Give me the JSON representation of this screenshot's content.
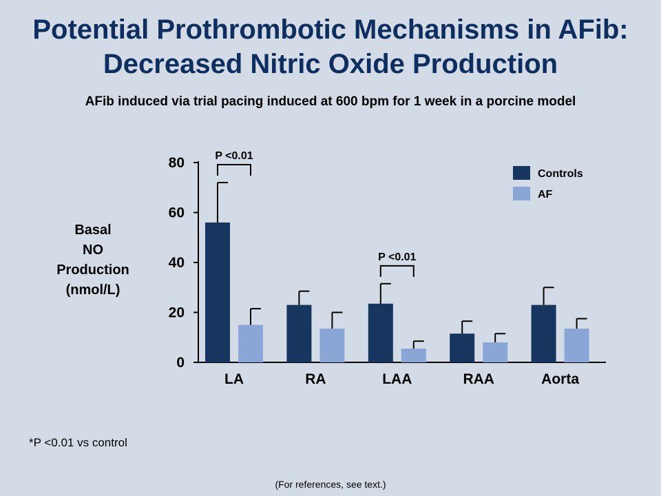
{
  "title": {
    "line1": "Potential Prothrombotic Mechanisms in AFib:",
    "line2": "Decreased Nitric Oxide Production"
  },
  "subtitle": "AFib induced via trial pacing induced at 600 bpm for 1 week in a porcine model",
  "ylabel_lines": [
    "Basal",
    "NO",
    "Production",
    "(nmol/L)"
  ],
  "footnote": "*P <0.01 vs control",
  "reference": "(For references, see text.)",
  "colors": {
    "controls": "#17365f",
    "af": "#8aa6d6",
    "title": "#0d2e5e"
  },
  "chart_data": {
    "type": "bar",
    "categories": [
      "LA",
      "RA",
      "LAA",
      "RAA",
      "Aorta"
    ],
    "series": [
      {
        "name": "Controls",
        "values": [
          56,
          23,
          23.5,
          11.5,
          23
        ],
        "error": [
          16,
          5.5,
          8,
          5,
          7
        ]
      },
      {
        "name": "AF",
        "values": [
          15,
          13.5,
          5.5,
          8,
          13.5
        ],
        "error": [
          6.5,
          6.5,
          3,
          3.5,
          4
        ]
      }
    ],
    "yticks": [
      0,
      20,
      40,
      60,
      80
    ],
    "ylim": [
      0,
      80
    ],
    "ylabel": "Basal NO Production (nmol/L)",
    "legend_position": "top-right",
    "annotations": [
      {
        "text": "P <0.01",
        "category": "LA"
      },
      {
        "text": "P <0.01",
        "category": "LAA"
      }
    ]
  }
}
